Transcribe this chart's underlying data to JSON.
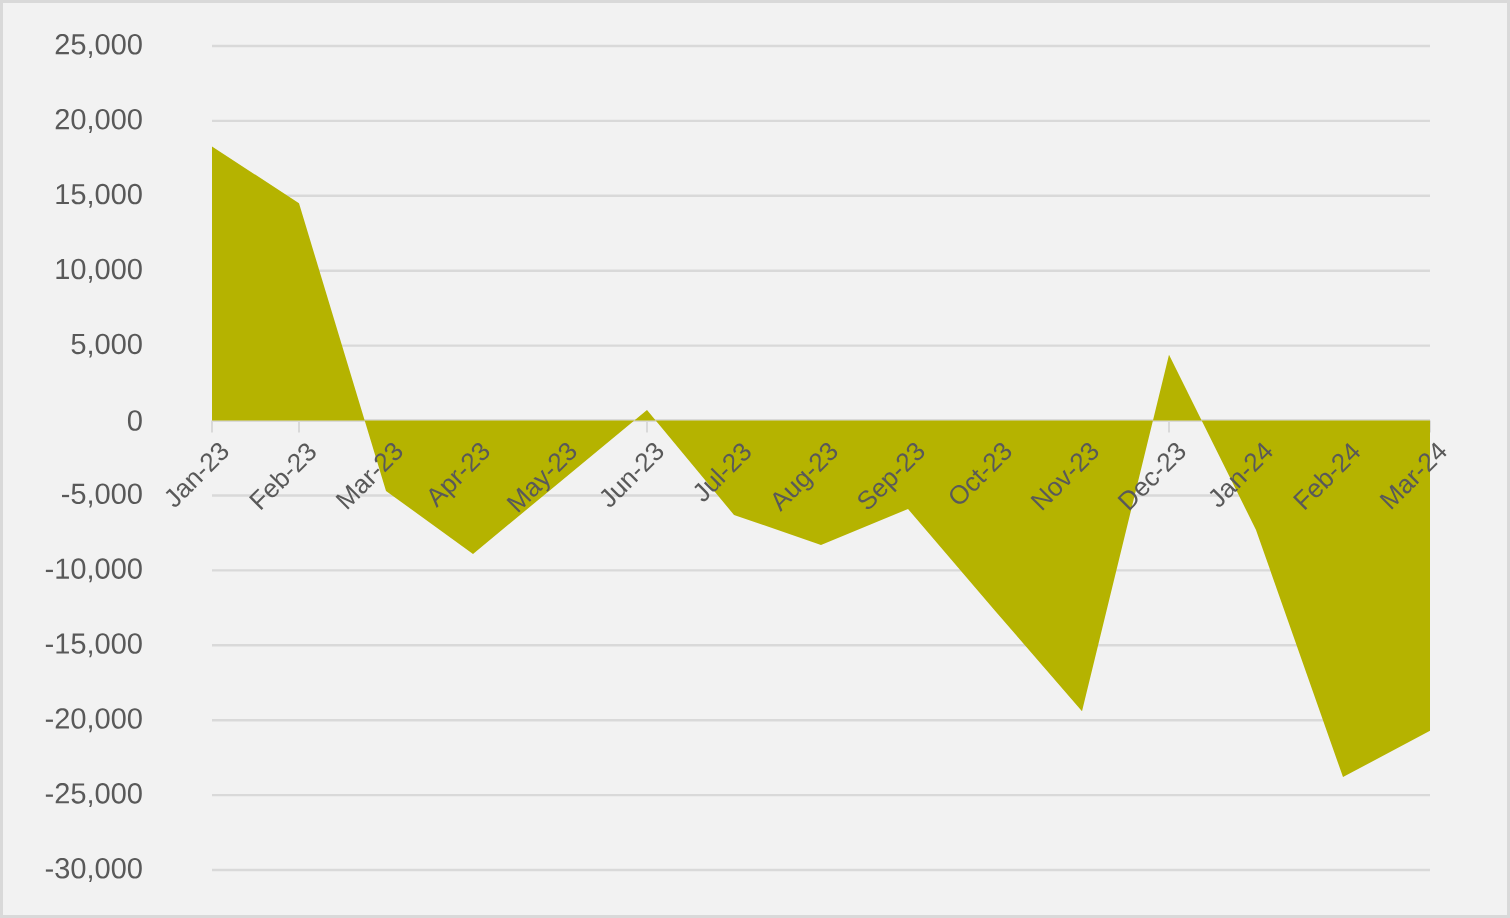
{
  "chart_data": {
    "type": "area",
    "categories": [
      "Jan-23",
      "Feb-23",
      "Mar-23",
      "Apr-23",
      "May-23",
      "Jun-23",
      "Jul-23",
      "Aug-23",
      "Sep-23",
      "Oct-23",
      "Nov-23",
      "Dec-23",
      "Jan-24",
      "Feb-24",
      "Mar-24"
    ],
    "values": [
      18300,
      14500,
      -4700,
      -8900,
      -4100,
      700,
      -6300,
      -8300,
      -5900,
      -12700,
      -19400,
      4400,
      -7300,
      -23800,
      -20700
    ],
    "color": "#b5b300",
    "ylim": [
      -30000,
      25000
    ],
    "yticks": [
      {
        "value": -30000,
        "label": "-30,000"
      },
      {
        "value": -25000,
        "label": "-25,000"
      },
      {
        "value": -20000,
        "label": "-20,000"
      },
      {
        "value": -15000,
        "label": "-15,000"
      },
      {
        "value": -10000,
        "label": "-10,000"
      },
      {
        "value": -5000,
        "label": "-5,000"
      },
      {
        "value": 0,
        "label": "0"
      },
      {
        "value": 5000,
        "label": "5,000"
      },
      {
        "value": 10000,
        "label": "10,000"
      },
      {
        "value": 15000,
        "label": "15,000"
      },
      {
        "value": 20000,
        "label": "20,000"
      },
      {
        "value": 25000,
        "label": "25,000"
      }
    ],
    "grid": "y"
  }
}
